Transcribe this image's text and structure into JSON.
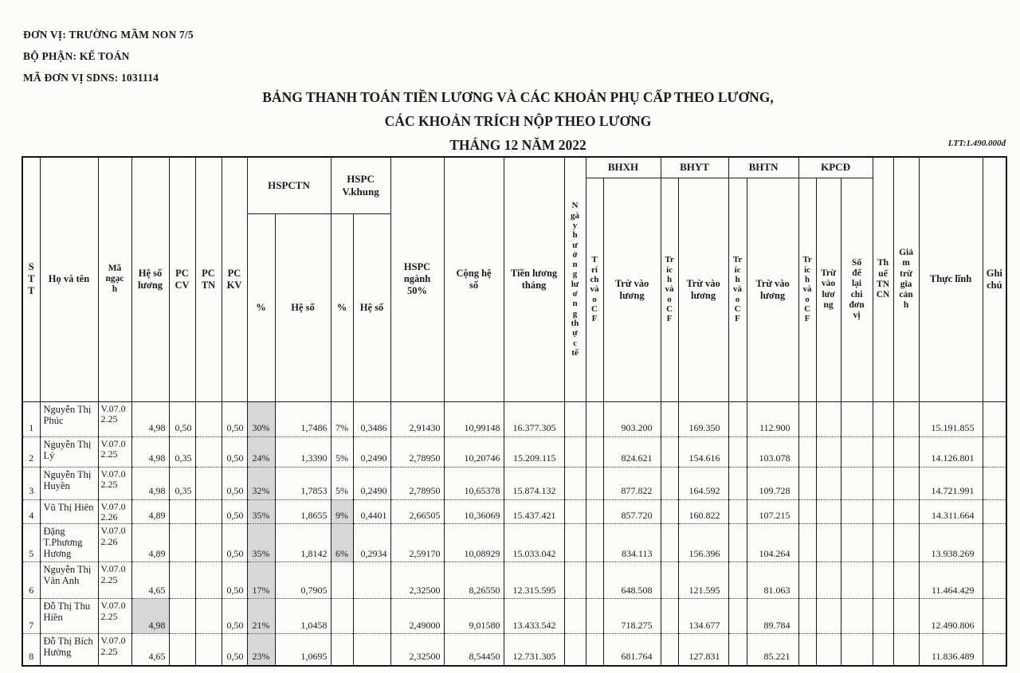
{
  "meta": {
    "don_vi": "ĐƠN VỊ: TRƯỜNG MẦM NON 7/5",
    "bo_phan": "BỘ PHẬN: KẾ TOÁN",
    "ma_don_vi": "MÃ ĐƠN VỊ SDNS: 1031114",
    "ltt": "LTT:1.490.000đ"
  },
  "title": {
    "line1": "BẢNG THANH TOÁN TIỀN LƯƠNG VÀ CÁC KHOẢN PHỤ CẤP THEO LƯƠNG,",
    "line2": "CÁC KHOẢN TRÍCH NỘP THEO LƯƠNG",
    "line3": "THÁNG 12 NĂM 2022"
  },
  "header": {
    "stt": "S\nT\nT",
    "ho_va_ten": "Họ và tên",
    "ma_ngach": "Mã\nngạc\nh",
    "he_so_luong": "Hệ số\nlương",
    "pc_cv": "PC\nCV",
    "pc_tn": "PC\nTN",
    "pc_kv": "PC\nKV",
    "hspctn": "HSPCTN",
    "hspc_vkhung": "HSPC\nV.khung",
    "pct": "%",
    "he_so": "Hệ số",
    "hspc_nganh": "HSPC\nngành\n50%",
    "cong_he_so": "Cộng hệ\nsố",
    "tien_luong_thang": "Tiền lương\ntháng",
    "ngay_huong": "N\ngà\ny\nh\nư\nở\nn\ng\nlư\nơ\nn\ng\nth\nự\nc\ntế",
    "bhxh": "BHXH",
    "bhyt": "BHYT",
    "bhtn": "BHTN",
    "kpcd": "KPCĐ",
    "trich_vao_cf_bhxh": "T\nrí\nch\nvà\no\nC\nF",
    "trich_vao_cf": "Tr\níc\nh\nvà\no\nC\nF",
    "tru_vao_luong": "Trừ vào\nlương",
    "tru_vao_luong_kpcd": "Trừ\nvào\nlươ\nng",
    "so_de_lai": "Số\nđể\nlại\nchi\nđơn\nvị",
    "thue_tncn": "Th\nuế\nTN\nCN",
    "giam_tru": "Giả\nm\ntrừ\ngia\ncản\nh",
    "thuc_linh": "Thực lĩnh",
    "ghi_chu": "Ghi\nchú"
  },
  "rows": [
    {
      "stt": "1",
      "name": "Nguyễn Thị Phúc",
      "ngach": "V.07.0\n2.25",
      "hsl": "4,98",
      "pccv": "0,50",
      "pctn": "",
      "pckv": "0,50",
      "pctn_pct": "30%",
      "pctn_hs": "1,7486",
      "vk_pct": "7%",
      "vk_hs": "0,3486",
      "nganh": "2,91430",
      "cong": "10,99148",
      "tienluong": "16.377.305",
      "ngay": "",
      "bhxh_cf": "",
      "bhxh_tru": "903.200",
      "bhyt_cf": "",
      "bhyt_tru": "169.350",
      "bhtn_cf": "",
      "bhtn_tru": "112.900",
      "kpcd_cf": "",
      "kpcd_tru": "",
      "sodelai": "",
      "thue": "",
      "giamtru": "",
      "thuclinh": "15.191.855",
      "ghichu": "",
      "shaded": [
        "pctn_pct"
      ]
    },
    {
      "stt": "2",
      "name": "Nguyễn Thị Lý",
      "ngach": "V.07.0\n2.25",
      "hsl": "4,98",
      "pccv": "0,35",
      "pctn": "",
      "pckv": "0,50",
      "pctn_pct": "24%",
      "pctn_hs": "1,3390",
      "vk_pct": "5%",
      "vk_hs": "0,2490",
      "nganh": "2,78950",
      "cong": "10,20746",
      "tienluong": "15.209.115",
      "ngay": "",
      "bhxh_cf": "",
      "bhxh_tru": "824.621",
      "bhyt_cf": "",
      "bhyt_tru": "154.616",
      "bhtn_cf": "",
      "bhtn_tru": "103.078",
      "kpcd_cf": "",
      "kpcd_tru": "",
      "sodelai": "",
      "thue": "",
      "giamtru": "",
      "thuclinh": "14.126.801",
      "ghichu": "",
      "shaded": [
        "pctn_pct"
      ]
    },
    {
      "stt": "3",
      "name": "Nguyễn Thị Huyền",
      "ngach": "V.07.0\n2.25",
      "hsl": "4,98",
      "pccv": "0,35",
      "pctn": "",
      "pckv": "0,50",
      "pctn_pct": "32%",
      "pctn_hs": "1,7853",
      "vk_pct": "5%",
      "vk_hs": "0,2490",
      "nganh": "2,78950",
      "cong": "10,65378",
      "tienluong": "15.874.132",
      "ngay": "",
      "bhxh_cf": "",
      "bhxh_tru": "877.822",
      "bhyt_cf": "",
      "bhyt_tru": "164.592",
      "bhtn_cf": "",
      "bhtn_tru": "109.728",
      "kpcd_cf": "",
      "kpcd_tru": "",
      "sodelai": "",
      "thue": "",
      "giamtru": "",
      "thuclinh": "14.721.991",
      "ghichu": "",
      "shaded": [
        "pctn_pct"
      ]
    },
    {
      "stt": "4",
      "name": "Vũ Thị Hiên",
      "ngach": "V.07.0\n2.26",
      "hsl": "4,89",
      "pccv": "",
      "pctn": "",
      "pckv": "0,50",
      "pctn_pct": "35%",
      "pctn_hs": "1,8655",
      "vk_pct": "9%",
      "vk_hs": "0,4401",
      "nganh": "2,66505",
      "cong": "10,36069",
      "tienluong": "15.437.421",
      "ngay": "",
      "bhxh_cf": "",
      "bhxh_tru": "857.720",
      "bhyt_cf": "",
      "bhyt_tru": "160.822",
      "bhtn_cf": "",
      "bhtn_tru": "107.215",
      "kpcd_cf": "",
      "kpcd_tru": "",
      "sodelai": "",
      "thue": "",
      "giamtru": "",
      "thuclinh": "14.311.664",
      "ghichu": "",
      "shaded": [
        "pctn_pct",
        "vk_pct"
      ]
    },
    {
      "stt": "5",
      "name": "Đặng T.Phương Hương",
      "ngach": "V.07.0\n2.26",
      "hsl": "4,89",
      "pccv": "",
      "pctn": "",
      "pckv": "0,50",
      "pctn_pct": "35%",
      "pctn_hs": "1,8142",
      "vk_pct": "6%",
      "vk_hs": "0,2934",
      "nganh": "2,59170",
      "cong": "10,08929",
      "tienluong": "15.033.042",
      "ngay": "",
      "bhxh_cf": "",
      "bhxh_tru": "834.113",
      "bhyt_cf": "",
      "bhyt_tru": "156.396",
      "bhtn_cf": "",
      "bhtn_tru": "104.264",
      "kpcd_cf": "",
      "kpcd_tru": "",
      "sodelai": "",
      "thue": "",
      "giamtru": "",
      "thuclinh": "13.938.269",
      "ghichu": "",
      "shaded": [
        "pctn_pct",
        "vk_pct"
      ]
    },
    {
      "stt": "6",
      "name": "Nguyễn Thị Vân Anh",
      "ngach": "V.07.0\n2.25",
      "hsl": "4,65",
      "pccv": "",
      "pctn": "",
      "pckv": "0,50",
      "pctn_pct": "17%",
      "pctn_hs": "0,7905",
      "vk_pct": "",
      "vk_hs": "",
      "nganh": "2,32500",
      "cong": "8,26550",
      "tienluong": "12.315.595",
      "ngay": "",
      "bhxh_cf": "",
      "bhxh_tru": "648.508",
      "bhyt_cf": "",
      "bhyt_tru": "121.595",
      "bhtn_cf": "",
      "bhtn_tru": "81.063",
      "kpcd_cf": "",
      "kpcd_tru": "",
      "sodelai": "",
      "thue": "",
      "giamtru": "",
      "thuclinh": "11.464.429",
      "ghichu": "",
      "shaded": [
        "pctn_pct"
      ]
    },
    {
      "stt": "7",
      "name": "Đỗ Thị Thu Hiền",
      "ngach": "V.07.0\n2.25",
      "hsl": "4,98",
      "pccv": "",
      "pctn": "",
      "pckv": "0,50",
      "pctn_pct": "21%",
      "pctn_hs": "1,0458",
      "vk_pct": "",
      "vk_hs": "",
      "nganh": "2,49000",
      "cong": "9,01580",
      "tienluong": "13.433.542",
      "ngay": "",
      "bhxh_cf": "",
      "bhxh_tru": "718.275",
      "bhyt_cf": "",
      "bhyt_tru": "134.677",
      "bhtn_cf": "",
      "bhtn_tru": "89.784",
      "kpcd_cf": "",
      "kpcd_tru": "",
      "sodelai": "",
      "thue": "",
      "giamtru": "",
      "thuclinh": "12.490.806",
      "ghichu": "",
      "shaded": [
        "pctn_pct",
        "hsl"
      ]
    },
    {
      "stt": "8",
      "name": "Đỗ Thị Bích Hường",
      "ngach": "V.07.0\n2.25",
      "hsl": "4,65",
      "pccv": "",
      "pctn": "",
      "pckv": "0,50",
      "pctn_pct": "23%",
      "pctn_hs": "1,0695",
      "vk_pct": "",
      "vk_hs": "",
      "nganh": "2,32500",
      "cong": "8,54450",
      "tienluong": "12.731.305",
      "ngay": "",
      "bhxh_cf": "",
      "bhxh_tru": "681.764",
      "bhyt_cf": "",
      "bhyt_tru": "127.831",
      "bhtn_cf": "",
      "bhtn_tru": "85.221",
      "kpcd_cf": "",
      "kpcd_tru": "",
      "sodelai": "",
      "thue": "",
      "giamtru": "",
      "thuclinh": "11.836.489",
      "ghichu": "",
      "shaded": [
        "pctn_pct"
      ]
    }
  ],
  "colors": {
    "shaded_cell": "#d7d7d7",
    "line": "#1b1b1b",
    "text": "#1a1a1a",
    "paper": "#fcfcfb"
  }
}
